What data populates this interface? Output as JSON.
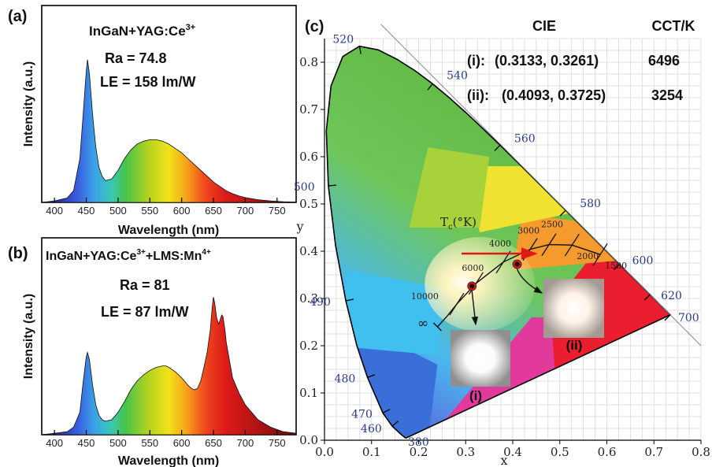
{
  "chart_data": [
    {
      "type": "area",
      "panel_label": "(a)",
      "annotations": [
        "InGaN+YAG:Ce",
        "3+",
        "Ra = 74.8",
        "LE = 158 lm/W"
      ],
      "xlabel": "Wavelength (nm)",
      "ylabel": "Intensity (a.u.)",
      "xlim": [
        380,
        780
      ],
      "xticks": [
        "400",
        "450",
        "500",
        "550",
        "600",
        "650",
        "700",
        "750"
      ],
      "x": [
        380,
        400,
        420,
        430,
        440,
        445,
        450,
        452,
        455,
        460,
        465,
        470,
        475,
        480,
        490,
        500,
        510,
        520,
        530,
        540,
        550,
        560,
        570,
        580,
        590,
        600,
        610,
        620,
        630,
        640,
        650,
        660,
        670,
        680,
        690,
        700,
        720,
        740,
        760,
        780
      ],
      "values": [
        0.0,
        0.01,
        0.03,
        0.08,
        0.3,
        0.6,
        0.9,
        0.98,
        0.88,
        0.6,
        0.38,
        0.24,
        0.18,
        0.15,
        0.16,
        0.22,
        0.3,
        0.36,
        0.4,
        0.42,
        0.43,
        0.43,
        0.42,
        0.4,
        0.37,
        0.34,
        0.3,
        0.26,
        0.22,
        0.18,
        0.14,
        0.11,
        0.08,
        0.06,
        0.045,
        0.033,
        0.018,
        0.01,
        0.005,
        0.002
      ]
    },
    {
      "type": "area",
      "panel_label": "(b)",
      "annotations": [
        "InGaN+YAG:Ce",
        "3+",
        "+LMS:Mn",
        "4+",
        "Ra = 81",
        "LE = 87 lm/W"
      ],
      "xlabel": "Wavelength (nm)",
      "ylabel": "Intensity (a.u.)",
      "xlim": [
        380,
        780
      ],
      "xticks": [
        "400",
        "450",
        "500",
        "550",
        "600",
        "650",
        "700",
        "750"
      ],
      "x": [
        380,
        400,
        420,
        430,
        440,
        445,
        450,
        452,
        455,
        460,
        465,
        470,
        475,
        480,
        490,
        500,
        510,
        520,
        530,
        540,
        550,
        560,
        570,
        575,
        580,
        590,
        600,
        610,
        615,
        620,
        625,
        630,
        635,
        640,
        645,
        648,
        650,
        652,
        655,
        658,
        660,
        663,
        665,
        668,
        670,
        675,
        680,
        690,
        700,
        720,
        740,
        760,
        780
      ],
      "values": [
        0.0,
        0.01,
        0.02,
        0.05,
        0.15,
        0.35,
        0.52,
        0.55,
        0.5,
        0.33,
        0.2,
        0.13,
        0.1,
        0.09,
        0.1,
        0.15,
        0.22,
        0.3,
        0.36,
        0.4,
        0.43,
        0.45,
        0.46,
        0.46,
        0.45,
        0.42,
        0.38,
        0.33,
        0.31,
        0.3,
        0.31,
        0.36,
        0.45,
        0.55,
        0.7,
        0.85,
        0.92,
        0.88,
        0.78,
        0.74,
        0.76,
        0.8,
        0.79,
        0.7,
        0.62,
        0.5,
        0.38,
        0.28,
        0.2,
        0.1,
        0.05,
        0.02,
        0.01
      ]
    },
    {
      "type": "scatter",
      "panel_label": "(c)",
      "xlabel": "x",
      "ylabel": "y",
      "xlim": [
        0.0,
        0.8
      ],
      "ylim": [
        0.0,
        0.85
      ],
      "xticks": [
        "0.0",
        "0.1",
        "0.2",
        "0.3",
        "0.4",
        "0.5",
        "0.6",
        "0.7",
        "0.8"
      ],
      "yticks": [
        "0.0",
        "0.1",
        "0.2",
        "0.3",
        "0.4",
        "0.5",
        "0.6",
        "0.7",
        "0.8"
      ],
      "locus_labels": [
        {
          "text": "380",
          "x": 0.1741,
          "y": 0.005
        },
        {
          "text": "460",
          "x": 0.144,
          "y": 0.0297
        },
        {
          "text": "470",
          "x": 0.1241,
          "y": 0.0578
        },
        {
          "text": "480",
          "x": 0.0913,
          "y": 0.1327
        },
        {
          "text": "490",
          "x": 0.0454,
          "y": 0.295
        },
        {
          "text": "500",
          "x": 0.0082,
          "y": 0.5384
        },
        {
          "text": "520",
          "x": 0.0743,
          "y": 0.8338
        },
        {
          "text": "540",
          "x": 0.2296,
          "y": 0.7543
        },
        {
          "text": "560",
          "x": 0.3731,
          "y": 0.6245
        },
        {
          "text": "580",
          "x": 0.5125,
          "y": 0.4866
        },
        {
          "text": "600",
          "x": 0.627,
          "y": 0.3725
        },
        {
          "text": "620",
          "x": 0.6915,
          "y": 0.3083
        },
        {
          "text": "700",
          "x": 0.7347,
          "y": 0.2653
        }
      ],
      "planckian": {
        "title": "Tc(°K)",
        "title_main": "T",
        "title_sub": "c",
        "title_rest": "(°K)",
        "infinity_label": "∞",
        "labels": [
          {
            "text": "10000",
            "x": 0.281,
            "y": 0.288
          },
          {
            "text": "6000",
            "x": 0.322,
            "y": 0.332
          },
          {
            "text": "4000",
            "x": 0.38,
            "y": 0.377
          },
          {
            "text": "3000",
            "x": 0.437,
            "y": 0.404
          },
          {
            "text": "2500",
            "x": 0.477,
            "y": 0.414
          },
          {
            "text": "2000",
            "x": 0.526,
            "y": 0.413
          },
          {
            "text": "1500",
            "x": 0.586,
            "y": 0.393
          }
        ]
      },
      "table": {
        "headers": [
          "CIE",
          "CCT/K"
        ],
        "rows": [
          {
            "id": "(i):",
            "cie": "(0.3133, 0.3261)",
            "cct": "6496"
          },
          {
            "id": "(ii):",
            "cie": "(0.4093, 0.3725)",
            "cct": "3254"
          }
        ]
      },
      "points": [
        {
          "label": "(i)",
          "x": 0.3133,
          "y": 0.3261
        },
        {
          "label": "(ii)",
          "x": 0.4093,
          "y": 0.3725
        }
      ]
    }
  ]
}
